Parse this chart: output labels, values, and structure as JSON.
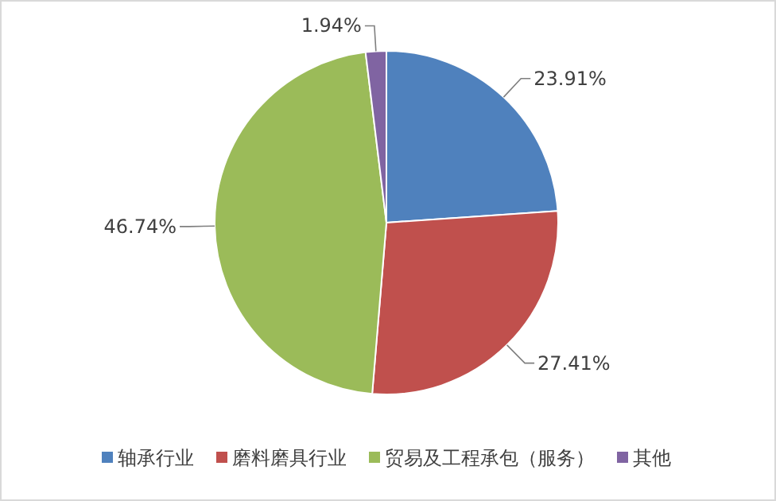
{
  "chart_data": {
    "type": "pie",
    "categories": [
      "轴承行业",
      "磨料磨具行业",
      "贸易及工程承包（服务）",
      "其他"
    ],
    "values": [
      23.91,
      27.41,
      46.74,
      1.94
    ],
    "colors": [
      "#4f81bd",
      "#c0504d",
      "#9bbb59",
      "#8064a2"
    ],
    "value_labels": [
      "23.91%",
      "27.41%",
      "46.74%",
      "1.94%"
    ],
    "legend": "bottom"
  }
}
